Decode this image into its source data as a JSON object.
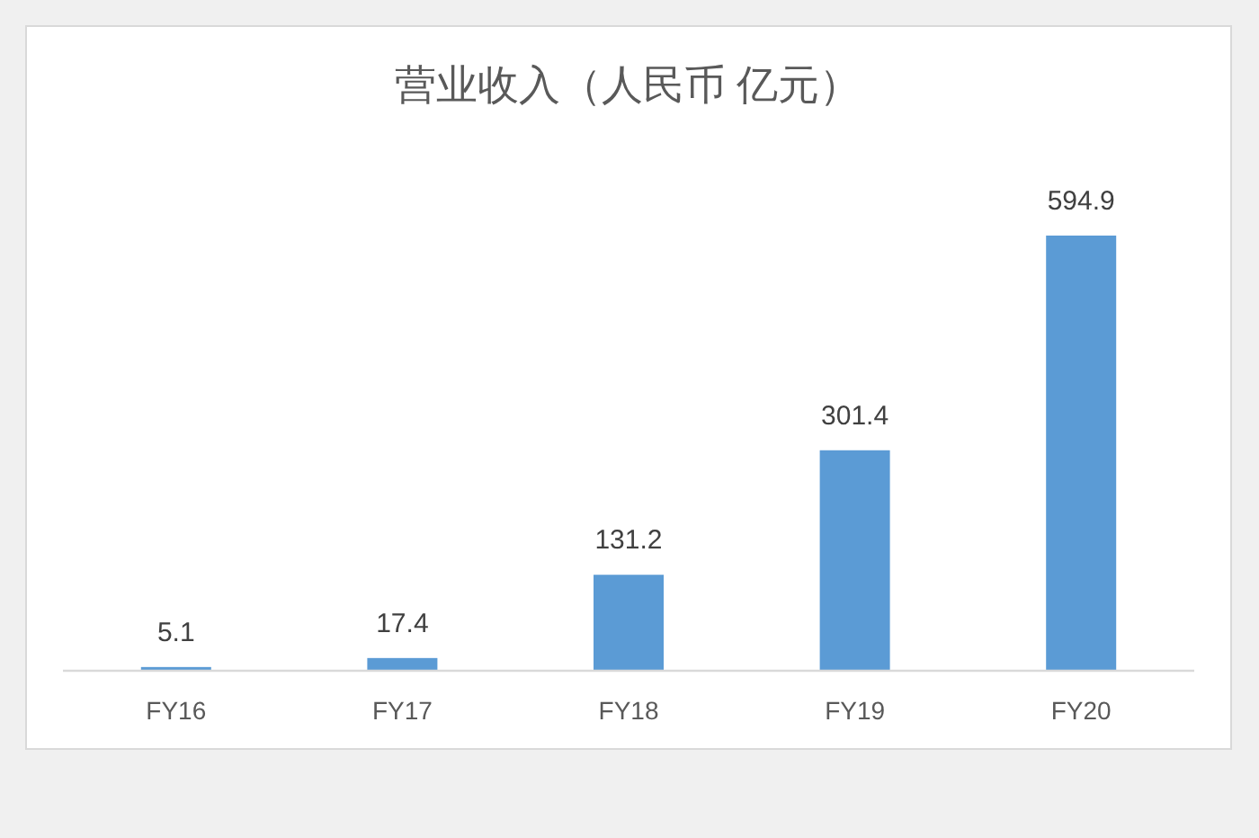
{
  "chart_data": {
    "type": "bar",
    "title": "营业收入（人民币 亿元）",
    "categories": [
      "FY16",
      "FY17",
      "FY18",
      "FY19",
      "FY20"
    ],
    "values": [
      5.1,
      17.4,
      131.2,
      301.4,
      594.9
    ],
    "color": "#5b9bd5",
    "data_labels": true
  }
}
